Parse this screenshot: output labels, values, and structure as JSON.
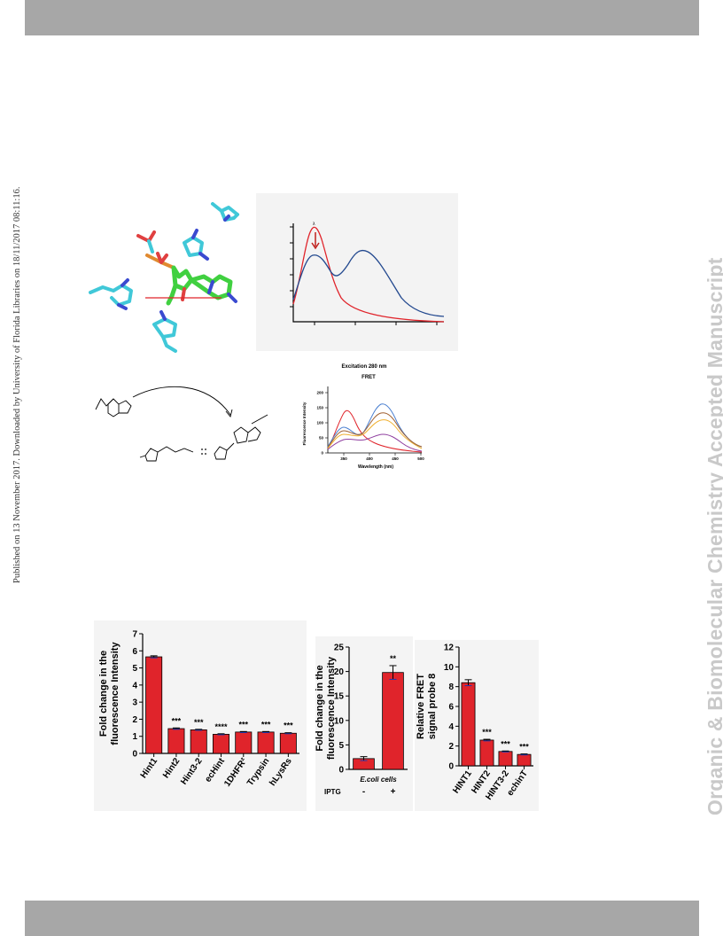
{
  "side_note": "Published on 13 November 2017. Downloaded by University of Florida Libraries on 18/11/2017 08:11:16.",
  "watermark": "Organic & Biomolecular Chemistry Accepted Manuscript",
  "colors": {
    "bar": "#e0242b",
    "band": "#a7a7a7",
    "watermark": "#c9c9c9",
    "blue": "#23498f",
    "red": "#e0242b"
  },
  "fret_panel": {
    "title": "Excitation 280 nm",
    "subtitle": "FRET",
    "ylabel": "Fluorescence Intensity",
    "xlabel": "Wavelength (nm)",
    "yticks": [
      "0",
      "50",
      "100",
      "150",
      "200"
    ],
    "xticks": [
      "350",
      "400",
      "450",
      "500"
    ]
  },
  "spectrum_panel": {
    "marker": "λ"
  },
  "chart_data": [
    {
      "type": "bar",
      "categories": [
        "Hint1",
        "Hint2",
        "Hint3-2",
        "ecHint",
        "1DHFR²",
        "Trypsin",
        "hLysRs"
      ],
      "values": [
        5.65,
        1.45,
        1.38,
        1.12,
        1.25,
        1.25,
        1.18
      ],
      "errors": [
        0.06,
        0.04,
        0.03,
        0.03,
        0.03,
        0.03,
        0.03
      ],
      "significance": [
        "",
        "***",
        "***",
        "****",
        "***",
        "***",
        "***"
      ],
      "ylabel": "Fold change in the fluorescence Intensity",
      "ylim": [
        0,
        7
      ],
      "yticks": [
        "0",
        "1",
        "2",
        "3",
        "4",
        "5",
        "6",
        "7"
      ],
      "color": "#e0242b"
    },
    {
      "type": "bar",
      "categories": [
        "-",
        "+"
      ],
      "values": [
        2.2,
        19.8
      ],
      "errors": [
        0.4,
        1.4
      ],
      "significance": [
        "",
        "**"
      ],
      "ylabel": "Fold change in the fluorescence Intensity",
      "category_title": "E.coli cells",
      "row_label": "IPTG",
      "ylim": [
        0,
        25
      ],
      "yticks": [
        "0",
        "5",
        "10",
        "15",
        "20",
        "25"
      ],
      "color": "#e0242b"
    },
    {
      "type": "bar",
      "categories": [
        "HINT1",
        "HINT2",
        "HINT3-2",
        "echinT"
      ],
      "values": [
        8.4,
        2.6,
        1.45,
        1.15
      ],
      "errors": [
        0.3,
        0.08,
        0.05,
        0.05
      ],
      "significance": [
        "",
        "***",
        "***",
        "***"
      ],
      "ylabel": "Relative FRET signal probe 8",
      "ylim": [
        0,
        12
      ],
      "yticks": [
        "0",
        "2",
        "4",
        "6",
        "8",
        "10",
        "12"
      ],
      "color": "#e0242b"
    }
  ]
}
